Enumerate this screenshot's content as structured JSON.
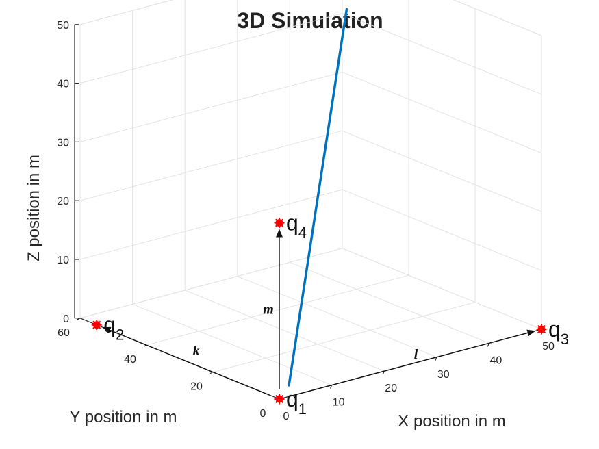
{
  "chart_data": {
    "type": "line",
    "title": "3D Simulation",
    "xlabel": "X position in m",
    "ylabel": "Y position in m",
    "zlabel": "Z position in m",
    "xlim": [
      0,
      50
    ],
    "ylim": [
      0,
      60
    ],
    "zlim": [
      0,
      50
    ],
    "x_ticks": [
      "0",
      "10",
      "20",
      "30",
      "40",
      "50"
    ],
    "y_ticks": [
      "0",
      "20",
      "40",
      "60"
    ],
    "z_ticks": [
      "0",
      "10",
      "20",
      "30",
      "40",
      "50"
    ],
    "grid": true,
    "series": [
      {
        "color": "#0072BD",
        "points": [
          [
            5,
            5,
            0
          ],
          [
            35,
            35,
            50
          ]
        ]
      }
    ],
    "points": [
      {
        "label": "q",
        "sub": "1",
        "coords": [
          0,
          0,
          0
        ],
        "color": "#ff0000"
      },
      {
        "label": "q",
        "sub": "2",
        "coords": [
          0,
          55,
          0
        ],
        "color": "#ff0000"
      },
      {
        "label": "q",
        "sub": "3",
        "coords": [
          50,
          0,
          0
        ],
        "color": "#ff0000"
      },
      {
        "label": "q",
        "sub": "4",
        "coords": [
          0,
          0,
          30
        ],
        "color": "#ff0000"
      }
    ],
    "vectors": [
      {
        "label": "k",
        "from": [
          0,
          0,
          0
        ],
        "to": [
          0,
          55,
          0
        ]
      },
      {
        "label": "l",
        "from": [
          0,
          0,
          0
        ],
        "to": [
          50,
          0,
          0
        ]
      },
      {
        "label": "m",
        "from": [
          0,
          0,
          0
        ],
        "to": [
          0,
          0,
          30
        ]
      }
    ]
  }
}
